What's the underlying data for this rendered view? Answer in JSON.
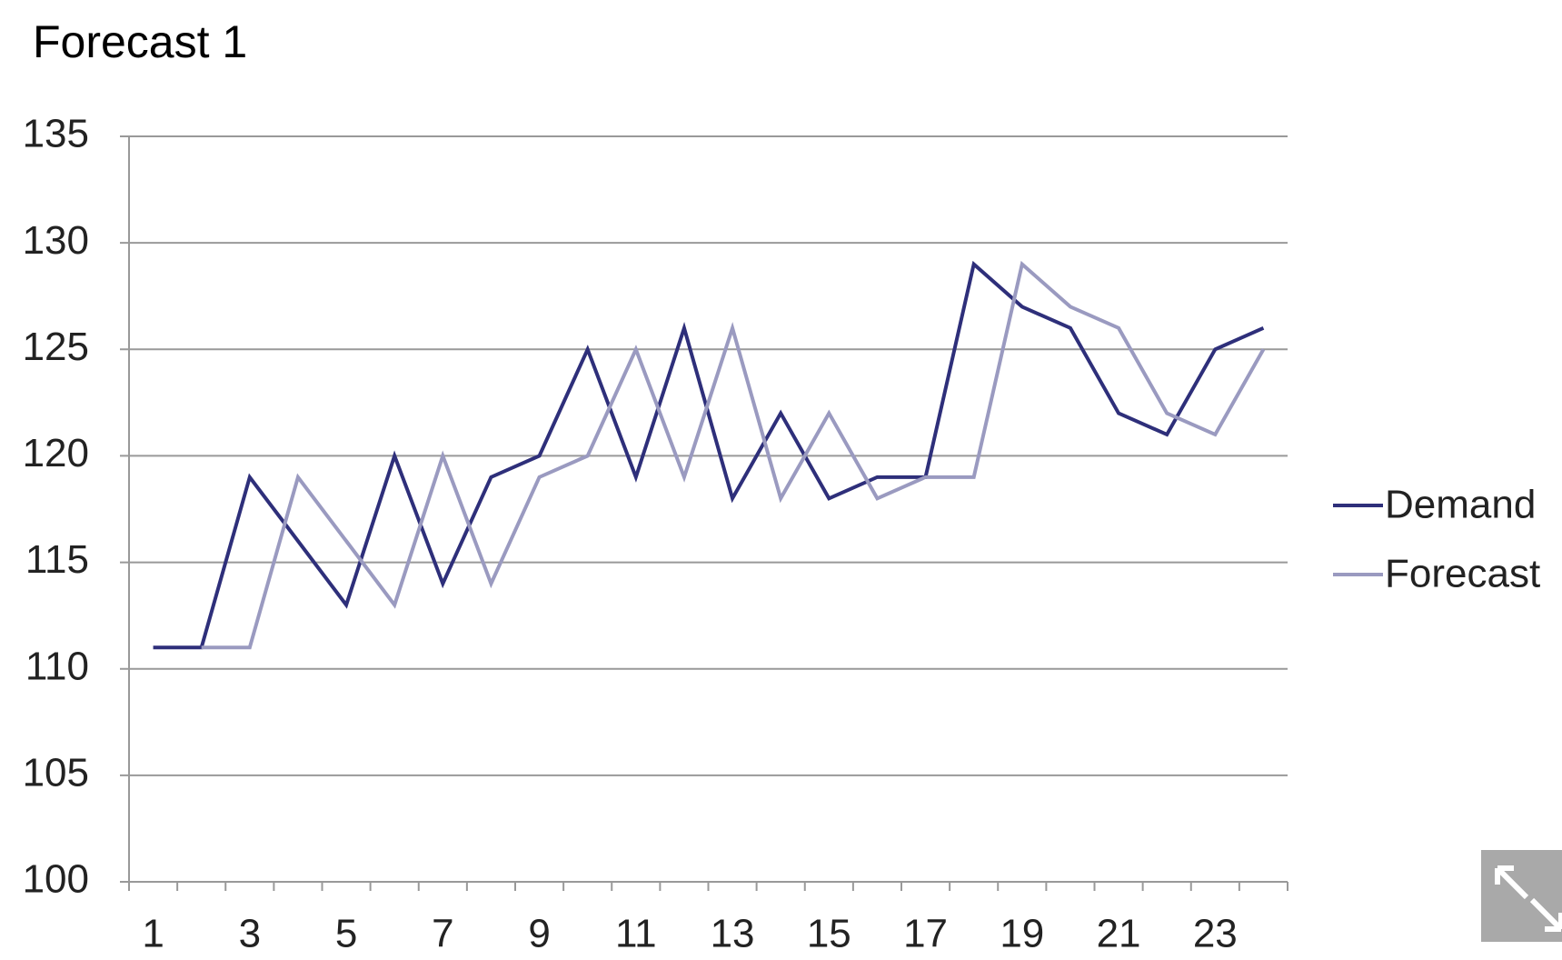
{
  "chart_data": {
    "type": "line",
    "title": "Forecast 1",
    "categories": [
      "1",
      null,
      "3",
      null,
      "5",
      null,
      "7",
      null,
      "9",
      null,
      "11",
      null,
      "13",
      null,
      "15",
      null,
      "17",
      null,
      "19",
      null,
      "21",
      null,
      "23",
      null
    ],
    "series": [
      {
        "name": "Demand",
        "color": "#2e2f7a",
        "values": [
          111,
          111,
          119,
          116,
          113,
          120,
          114,
          119,
          120,
          125,
          119,
          126,
          118,
          122,
          118,
          119,
          119,
          129,
          127,
          126,
          122,
          121,
          125,
          126
        ]
      },
      {
        "name": "Forecast",
        "color": "#9a9ac0",
        "values": [
          null,
          111,
          111,
          119,
          116,
          113,
          120,
          114,
          119,
          120,
          125,
          119,
          126,
          118,
          122,
          118,
          119,
          119,
          129,
          127,
          126,
          122,
          121,
          125
        ]
      }
    ],
    "ylim": [
      100,
      135
    ],
    "yticks": [
      100,
      105,
      110,
      115,
      120,
      125,
      130,
      135
    ],
    "grid": true,
    "legend": "right"
  }
}
